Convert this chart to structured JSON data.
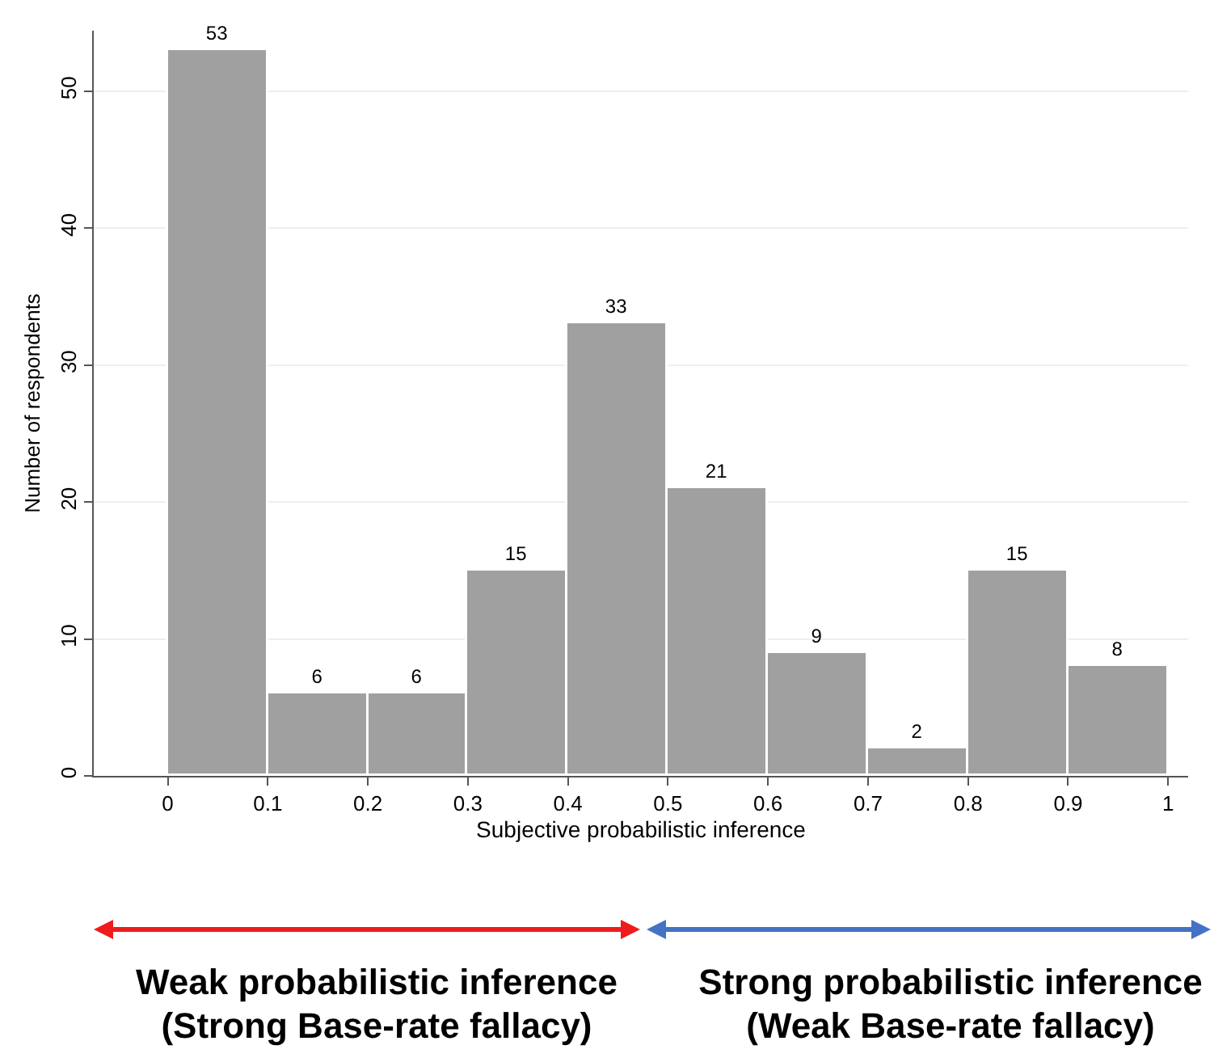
{
  "chart_data": {
    "type": "histogram",
    "xlabel": "Subjective probabilistic inference",
    "ylabel": "Number of respondents",
    "bins": [
      0,
      0.1,
      0.2,
      0.3,
      0.4,
      0.5,
      0.6,
      0.7,
      0.8,
      0.9,
      1
    ],
    "values": [
      53,
      6,
      6,
      15,
      33,
      21,
      9,
      2,
      15,
      8
    ],
    "color": "#a0a0a0",
    "xlim": [
      -0.074,
      1.02
    ],
    "xticks": [
      0,
      0.1,
      0.2,
      0.3,
      0.4,
      0.5,
      0.6,
      0.7,
      0.8,
      0.9,
      1
    ],
    "ylim": [
      0,
      54.4
    ],
    "yticks": [
      0,
      10,
      20,
      30,
      40,
      50
    ],
    "grid": "y",
    "data_labels": true,
    "annotations": [
      "Weak probabilistic inference\n(Strong Base-rate fallacy)",
      "Strong probabilistic inference\n(Weak Base-rate fallacy)"
    ]
  }
}
